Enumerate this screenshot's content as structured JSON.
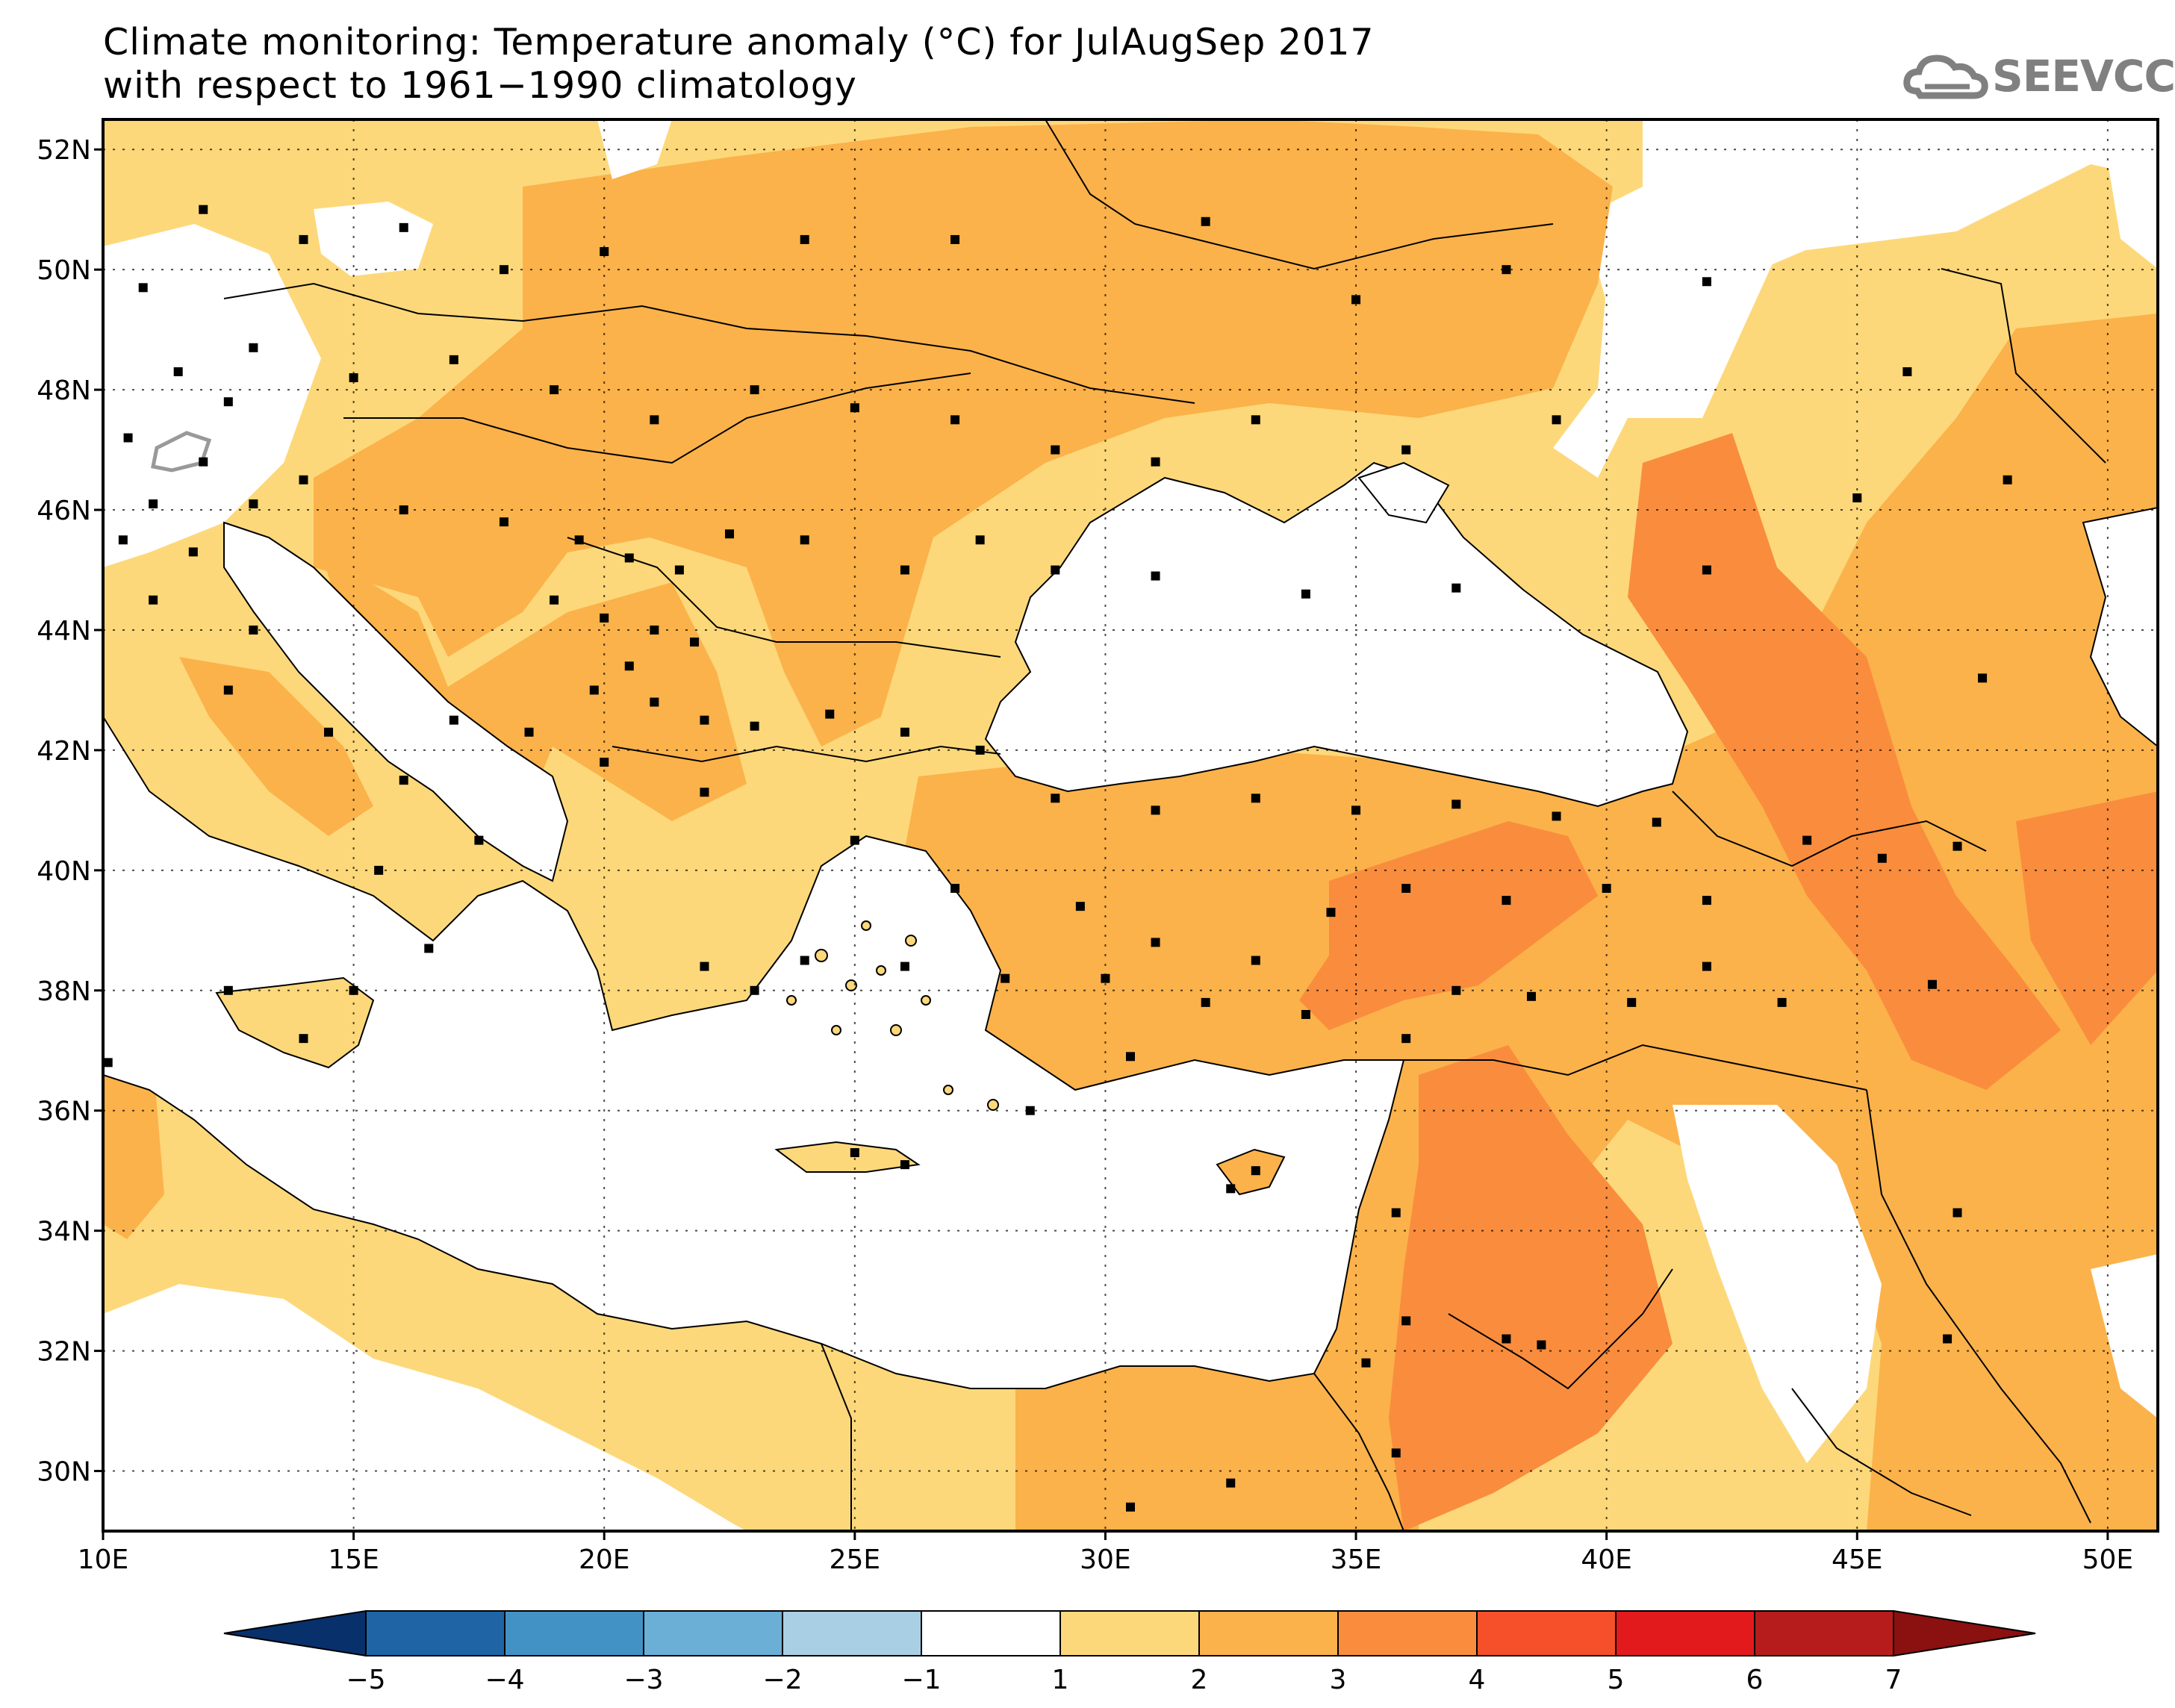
{
  "title": {
    "line1": "Climate monitoring: Temperature anomaly (°C) for JulAugSep 2017",
    "line2": "with respect to 1961−1990 climatology"
  },
  "logo": {
    "text": "SEEVCCC",
    "icon": "cloud-icon"
  },
  "map": {
    "lon_range": [
      10,
      51
    ],
    "lat_range": [
      29,
      52.5
    ],
    "lon_ticks": [
      "10E",
      "15E",
      "20E",
      "25E",
      "30E",
      "35E",
      "40E",
      "45E",
      "50E"
    ],
    "lat_ticks": [
      "30N",
      "32N",
      "34N",
      "36N",
      "38N",
      "40N",
      "42N",
      "44N",
      "46N",
      "48N",
      "50N",
      "52N"
    ],
    "grid": true
  },
  "colorbar": {
    "levels": [
      "−5",
      "−4",
      "−3",
      "−2",
      "−1",
      "1",
      "2",
      "3",
      "4",
      "5",
      "6",
      "7"
    ],
    "colors": [
      "#08306b",
      "#1f65a5",
      "#4292c6",
      "#6baed6",
      "#a9cfe5",
      "#ffffff",
      "#fdd87a",
      "#fbb24a",
      "#f98d3d",
      "#f5502a",
      "#e31a1c",
      "#b71c1c",
      "#8b1010"
    ]
  },
  "colors": {
    "c1": "#fdd87a",
    "c2": "#fbb24a",
    "c3": "#f98d3d",
    "c4": "#f5502a"
  }
}
